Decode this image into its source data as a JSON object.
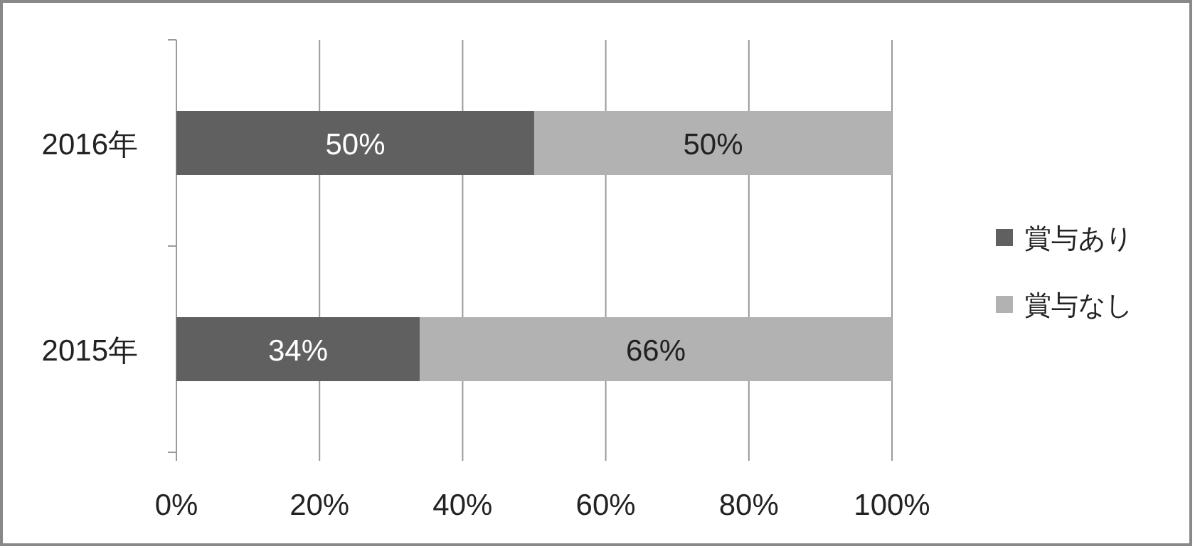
{
  "chart_data": {
    "type": "bar",
    "orientation": "horizontal",
    "stacked": true,
    "categories": [
      "2016年",
      "2015年"
    ],
    "series": [
      {
        "name": "賞与あり",
        "color": "#606060",
        "values": [
          50,
          34
        ],
        "value_labels": [
          "50%",
          "34%"
        ]
      },
      {
        "name": "賞与なし",
        "color": "#b2b2b2",
        "values": [
          50,
          66
        ],
        "value_labels": [
          "50%",
          "66%"
        ]
      }
    ],
    "xlim": [
      0,
      100
    ],
    "xticks": [
      {
        "value": 0,
        "label": "0%"
      },
      {
        "value": 20,
        "label": "20%"
      },
      {
        "value": 40,
        "label": "40%"
      },
      {
        "value": 60,
        "label": "60%"
      },
      {
        "value": 80,
        "label": "80%"
      },
      {
        "value": 100,
        "label": "100%"
      }
    ],
    "grid": "x",
    "legend": "right"
  }
}
